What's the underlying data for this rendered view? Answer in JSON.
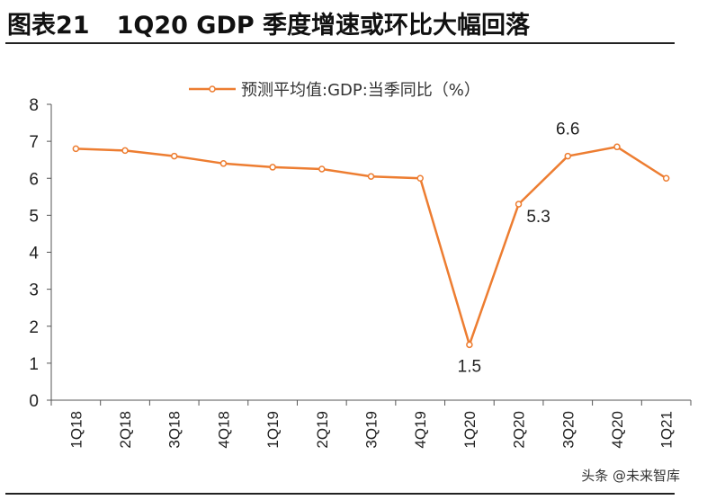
{
  "figure": {
    "label": "图表21",
    "title": "1Q20 GDP 季度增速或环比大幅回落"
  },
  "watermark": "头条 @未来智库",
  "chart_data": {
    "type": "line",
    "title": "",
    "xlabel": "",
    "ylabel": "",
    "categories": [
      "1Q18",
      "2Q18",
      "3Q18",
      "4Q18",
      "1Q19",
      "2Q19",
      "3Q19",
      "4Q19",
      "1Q20",
      "2Q20",
      "3Q20",
      "4Q20",
      "1Q21"
    ],
    "series": [
      {
        "name": "预测平均值:GDP:当季同比（%）",
        "color": "#ED7D31",
        "values": [
          6.8,
          6.75,
          6.6,
          6.4,
          6.3,
          6.25,
          6.05,
          6.0,
          1.5,
          5.3,
          6.6,
          6.85,
          6.0
        ]
      }
    ],
    "annotations": [
      {
        "category": "1Q20",
        "text": "1.5"
      },
      {
        "category": "2Q20",
        "text": "5.3"
      },
      {
        "category": "3Q20",
        "text": "6.6"
      }
    ],
    "yticks": [
      "0",
      "1",
      "2",
      "3",
      "4",
      "5",
      "6",
      "7",
      "8"
    ],
    "ylim": [
      0,
      8
    ],
    "grid": false,
    "legend": "top-center"
  }
}
